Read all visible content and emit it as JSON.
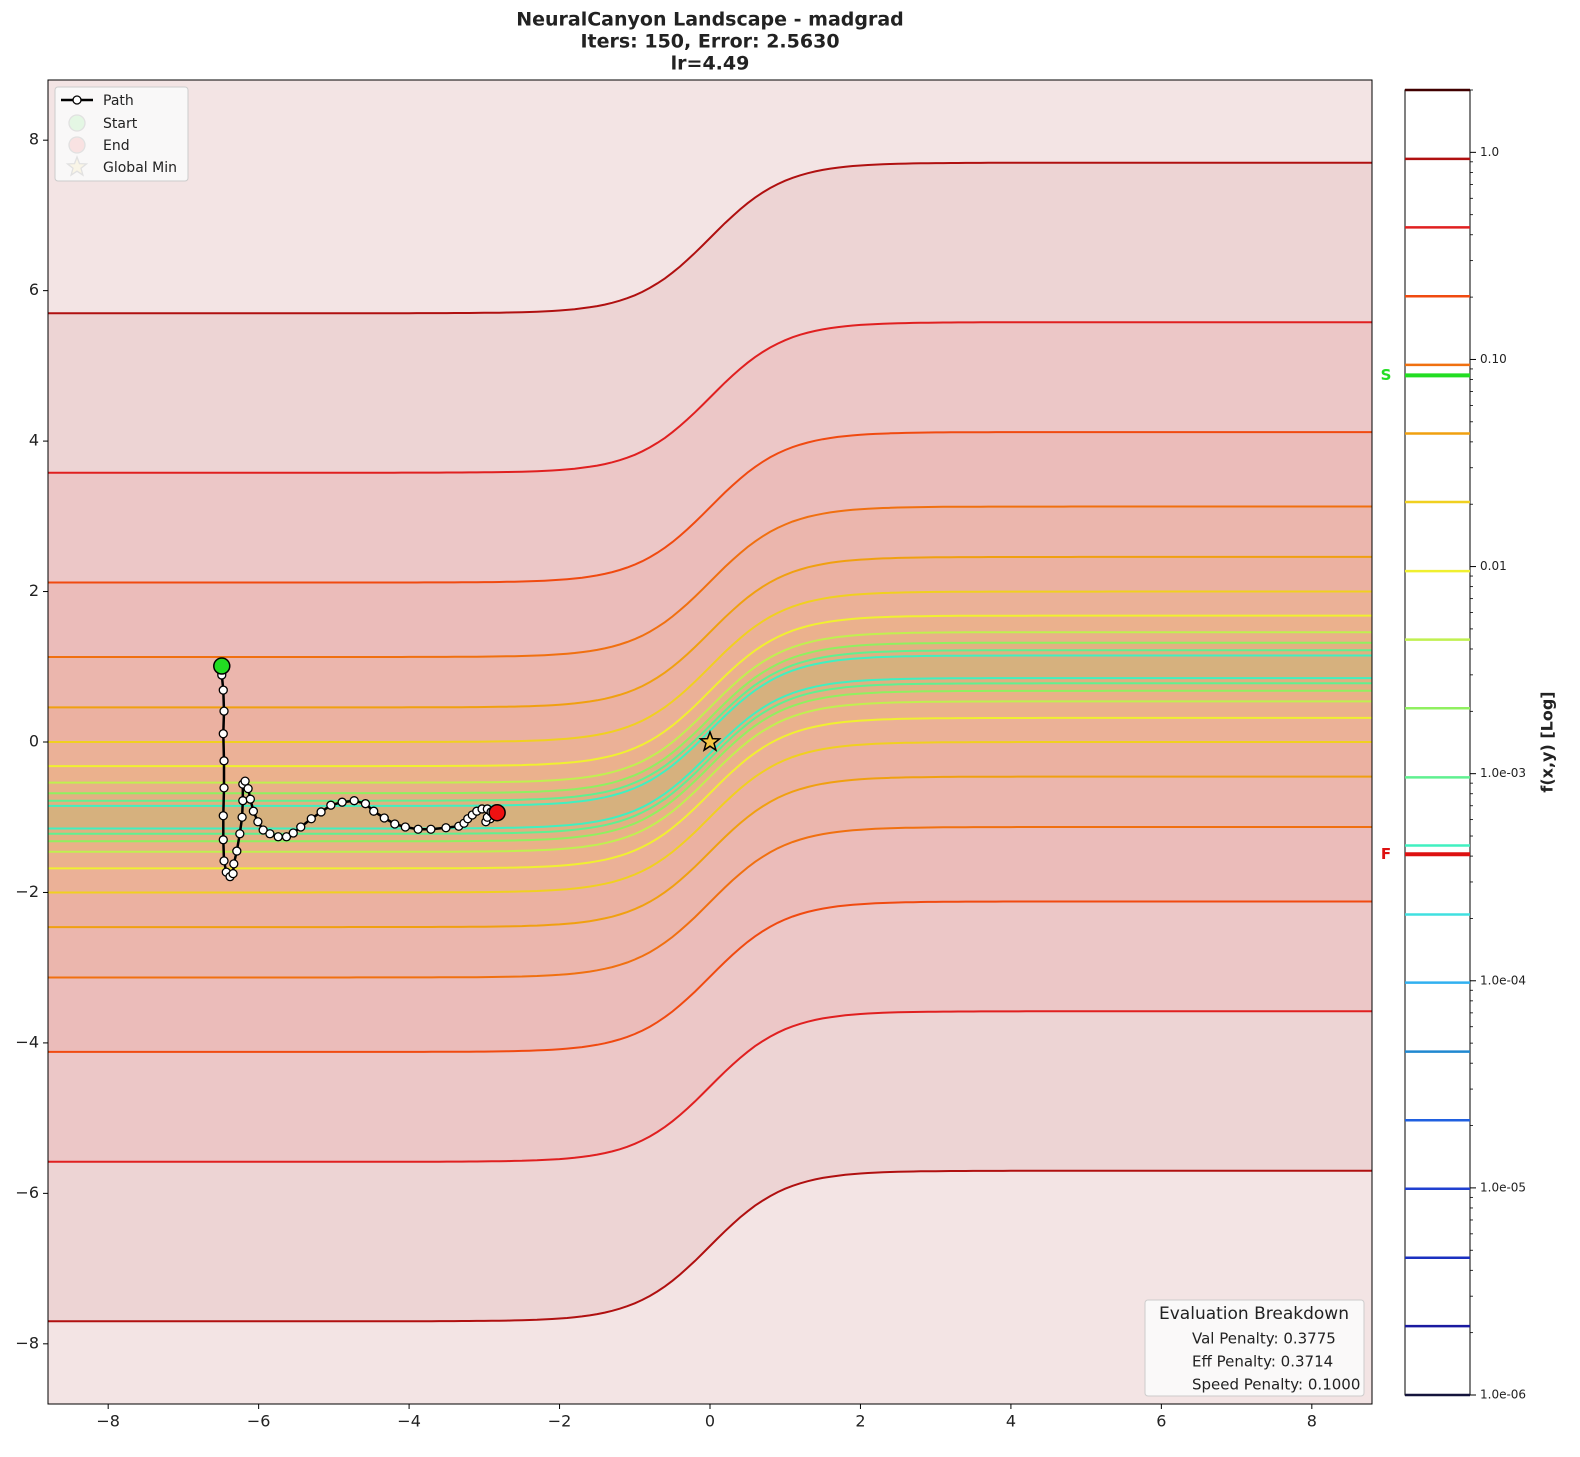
{
  "chart_data": {
    "type": "contour",
    "title": [
      "NeuralCanyon Landscape - madgrad",
      "Iters: 150, Error: 2.5630",
      "lr=4.49"
    ],
    "xlim": [
      -8.8,
      8.8
    ],
    "ylim": [
      -8.8,
      8.8
    ],
    "xticks": [
      {
        "value": -8,
        "label": "−8"
      },
      {
        "value": -6,
        "label": "−6"
      },
      {
        "value": -4,
        "label": "−4"
      },
      {
        "value": -2,
        "label": "−2"
      },
      0,
      2,
      4,
      6,
      8
    ],
    "yticks": [
      {
        "value": -8,
        "label": "−8"
      },
      {
        "value": -6,
        "label": "−6"
      },
      {
        "value": -4,
        "label": "−4"
      },
      {
        "value": -2,
        "label": "−2"
      },
      0,
      2,
      4,
      6,
      8
    ],
    "colorbar": {
      "label": "f(x,y) [Log]",
      "log": true,
      "clim": [
        1e-06,
        2.0
      ],
      "ticks": [
        {
          "value": 1e-06,
          "label": "1.0e-06"
        },
        {
          "value": 1e-05,
          "label": "1.0e-05"
        },
        {
          "value": 0.0001,
          "label": "1.0e-04"
        },
        {
          "value": 0.001,
          "label": "1.0e-03"
        },
        {
          "value": 0.01,
          "label": "0.01"
        },
        {
          "value": 0.1,
          "label": "0.10"
        },
        {
          "value": 1,
          "label": "1.0"
        }
      ],
      "markers": [
        {
          "label": "S",
          "value": 0.0838,
          "color": "#22dd22"
        },
        {
          "label": "F",
          "value": 0.000408,
          "color": "#dd1111"
        }
      ]
    },
    "levels": [
      {
        "value": 1e-06,
        "color": "#14143c"
      },
      {
        "value": 2.15e-06,
        "color": "#1a1aa0"
      },
      {
        "value": 4.6e-06,
        "color": "#1a30c0"
      },
      {
        "value": 9.9e-06,
        "color": "#2040d0"
      },
      {
        "value": 2.12e-05,
        "color": "#2060e0"
      },
      {
        "value": 4.55e-05,
        "color": "#2088d0"
      },
      {
        "value": 9.8e-05,
        "color": "#30b0f0"
      },
      {
        "value": 0.000209,
        "color": "#40e0e0"
      },
      {
        "value": 0.00045,
        "color": "#40f0c0",
        "lines": [
          [
            -0.85,
            1.15
          ],
          [
            -1.15,
            0.85
          ]
        ]
      },
      {
        "value": 0.00096,
        "color": "#60f090",
        "lines": [
          [
            -0.78,
            1.22
          ],
          [
            -1.22,
            0.78
          ]
        ]
      },
      {
        "value": 0.00207,
        "color": "#90f060",
        "lines": [
          [
            -0.68,
            1.32
          ],
          [
            -1.32,
            0.68
          ]
        ]
      },
      {
        "value": 0.00444,
        "color": "#c0f050",
        "lines": [
          [
            -0.54,
            1.46
          ],
          [
            -1.46,
            0.54
          ]
        ]
      },
      {
        "value": 0.0095,
        "color": "#f0f030",
        "lines": [
          [
            -0.32,
            1.68
          ],
          [
            -1.68,
            0.32
          ]
        ]
      },
      {
        "value": 0.0205,
        "color": "#f0d020",
        "lines": [
          [
            0.0,
            2.0
          ],
          [
            -2.0,
            0.0
          ]
        ]
      },
      {
        "value": 0.0439,
        "color": "#f0a010",
        "lines": [
          [
            0.46,
            2.46
          ],
          [
            -2.46,
            -0.46
          ]
        ]
      },
      {
        "value": 0.0942,
        "color": "#f07010",
        "lines": [
          [
            1.13,
            3.13
          ],
          [
            -3.13,
            -1.13
          ]
        ]
      },
      {
        "value": 0.202,
        "color": "#f04a10",
        "lines": [
          [
            2.12,
            4.12
          ],
          [
            -4.12,
            -2.12
          ]
        ]
      },
      {
        "value": 0.434,
        "color": "#e02020",
        "lines": [
          [
            3.58,
            5.58
          ],
          [
            -5.58,
            -3.58
          ]
        ]
      },
      {
        "value": 0.93,
        "color": "#b01010",
        "lines": [
          [
            5.7,
            7.7
          ],
          [
            -7.7,
            -5.7
          ]
        ]
      },
      {
        "value": 2.0,
        "color": "#400000"
      }
    ],
    "path": {
      "name": "Path",
      "color": "#000000",
      "x": [
        -6.49,
        -6.49,
        -6.47,
        -6.46,
        -6.47,
        -6.46,
        -6.46,
        -6.47,
        -6.47,
        -6.46,
        -6.43,
        -6.38,
        -6.34,
        -6.33,
        -6.29,
        -6.25,
        -6.22,
        -6.21,
        -6.21,
        -6.18,
        -6.14,
        -6.11,
        -6.07,
        -6.01,
        -5.94,
        -5.85,
        -5.74,
        -5.63,
        -5.54,
        -5.44,
        -5.3,
        -5.17,
        -5.04,
        -4.89,
        -4.73,
        -4.58,
        -4.47,
        -4.33,
        -4.19,
        -4.05,
        -3.88,
        -3.71,
        -3.51,
        -3.34,
        -3.27,
        -3.22,
        -3.16,
        -3.1,
        -3.03,
        -2.96,
        -2.91,
        -2.92,
        -2.98,
        -2.96,
        -2.91,
        -2.83
      ],
      "y": [
        1.01,
        0.89,
        0.69,
        0.41,
        0.11,
        -0.25,
        -0.61,
        -0.98,
        -1.3,
        -1.58,
        -1.73,
        -1.79,
        -1.75,
        -1.62,
        -1.45,
        -1.22,
        -1.0,
        -0.78,
        -0.56,
        -0.52,
        -0.62,
        -0.76,
        -0.92,
        -1.06,
        -1.17,
        -1.22,
        -1.26,
        -1.26,
        -1.21,
        -1.13,
        -1.02,
        -0.93,
        -0.84,
        -0.8,
        -0.78,
        -0.82,
        -0.92,
        -1.01,
        -1.09,
        -1.13,
        -1.16,
        -1.16,
        -1.14,
        -1.12,
        -1.08,
        -1.02,
        -0.97,
        -0.92,
        -0.89,
        -0.89,
        -0.94,
        -1.02,
        -1.06,
        -1.0,
        -0.93,
        -0.94
      ]
    },
    "points": [
      {
        "name": "Start",
        "x": -6.49,
        "y": 1.01,
        "color": "#22dd22",
        "marker": "circle"
      },
      {
        "name": "End",
        "x": -2.83,
        "y": -0.94,
        "color": "#ee1111",
        "marker": "circle"
      },
      {
        "name": "Global Min",
        "x": 0,
        "y": 0,
        "color": "#f5c542",
        "marker": "star"
      }
    ],
    "legend": "upper left",
    "breakdown": {
      "title": "Evaluation Breakdown",
      "lines": [
        "Val Penalty: 0.3775",
        "Eff Penalty: 0.3714",
        "Speed Penalty: 0.1000"
      ]
    }
  }
}
